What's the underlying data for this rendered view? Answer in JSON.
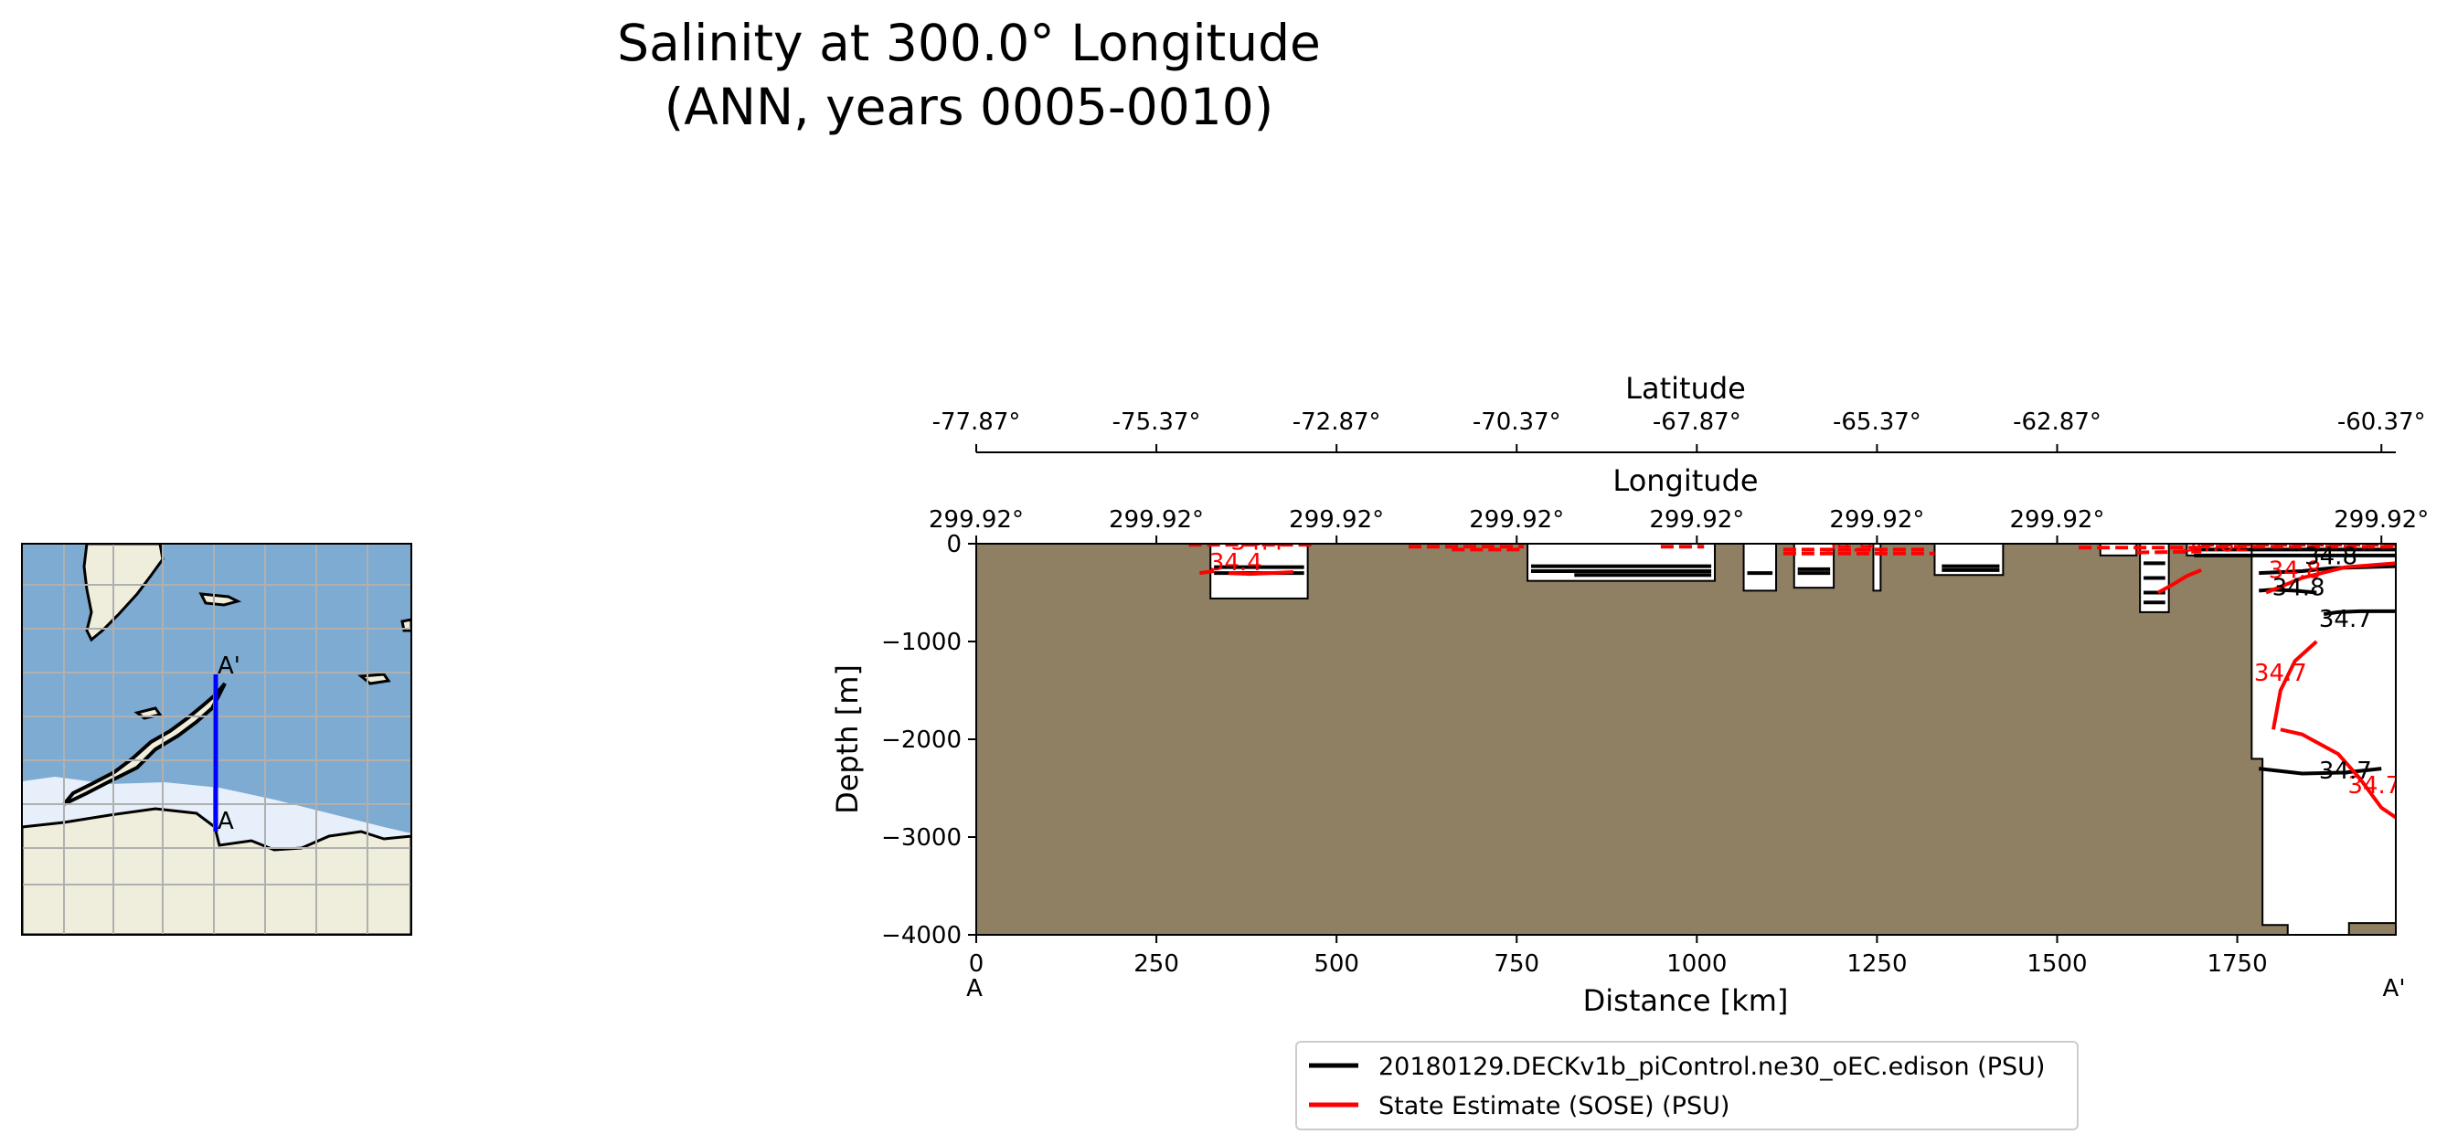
{
  "figure_title": {
    "line1": "Salinity at 300.0° Longitude",
    "line2": "(ANN, years 0005-0010)"
  },
  "colors": {
    "land": "#8f7f63",
    "model_line": "#000000",
    "obs_line": "#ff0000",
    "ocean_map": "#7eabd2",
    "ice_map": "#e6effa",
    "land_map": "#efeddb",
    "transect": "#0000ff"
  },
  "map": {
    "label_start": "A",
    "label_end": "A'",
    "grid": true
  },
  "chart_data": {
    "type": "contour-section",
    "xlabel": "Distance [km]",
    "ylabel": "Depth [m]",
    "xlim": [
      0,
      1970
    ],
    "ylim": [
      -4000,
      0
    ],
    "x_ticks": [
      "0",
      "250",
      "500",
      "750",
      "1000",
      "1250",
      "1500",
      "1750"
    ],
    "x_tick_values": [
      0,
      250,
      500,
      750,
      1000,
      1250,
      1500,
      1750
    ],
    "y_ticks": [
      "0",
      "−1000",
      "−2000",
      "−3000",
      "−4000"
    ],
    "y_tick_values": [
      0,
      -1000,
      -2000,
      -3000,
      -4000
    ],
    "x_end_labels": {
      "start": "A",
      "end": "A'"
    },
    "longitude_axis": {
      "label": "Longitude",
      "ticks": [
        "299.92°",
        "299.92°",
        "299.92°",
        "299.92°",
        "299.92°",
        "299.92°",
        "299.92°",
        "299.92°"
      ]
    },
    "latitude_axis": {
      "label": "Latitude",
      "ticks": [
        "-77.87°",
        "-75.37°",
        "-72.87°",
        "-70.37°",
        "-67.87°",
        "-65.37°",
        "-62.87°",
        "-60.37°"
      ]
    },
    "ocean_pockets": [
      {
        "x0": 325,
        "x1": 460,
        "bottom": -560
      },
      {
        "x0": 765,
        "x1": 1025,
        "bottom": -380
      },
      {
        "x0": 1065,
        "x1": 1110,
        "bottom": -480
      },
      {
        "x0": 1135,
        "x1": 1190,
        "bottom": -450
      },
      {
        "x0": 1245,
        "x1": 1255,
        "bottom": -480
      },
      {
        "x0": 1330,
        "x1": 1425,
        "bottom": -320
      },
      {
        "x0": 1560,
        "x1": 1610,
        "bottom": -120
      },
      {
        "x0": 1615,
        "x1": 1655,
        "bottom": -700
      },
      {
        "x0": 1680,
        "x1": 1970,
        "bottom": -120
      }
    ],
    "deep_basin": {
      "x": [
        1770,
        1770,
        1785,
        1785,
        1820,
        1820,
        1905,
        1905,
        1970
      ],
      "depth": [
        0,
        -2200,
        -2200,
        -3900,
        -3900,
        -4000,
        -4000,
        -3880,
        -3880
      ]
    },
    "contour_labels": [
      {
        "text": "34.4",
        "x": 360,
        "depth": -270,
        "series": "obs"
      },
      {
        "text": "34.4",
        "x": 390,
        "depth": -60,
        "series": "obs"
      },
      {
        "text": "34.4",
        "x": 1210,
        "depth": -80,
        "series": "obs"
      },
      {
        "text": "34.82",
        "x": 1720,
        "depth": -80,
        "series": "obs"
      },
      {
        "text": "34.8",
        "x": 1830,
        "depth": -350,
        "series": "obs"
      },
      {
        "text": "34.7",
        "x": 1810,
        "depth": -1400,
        "series": "obs"
      },
      {
        "text": "34.7",
        "x": 1940,
        "depth": -2550,
        "series": "obs"
      },
      {
        "text": "34.8",
        "x": 1835,
        "depth": -530,
        "series": "model"
      },
      {
        "text": "34.7",
        "x": 1900,
        "depth": -850,
        "series": "model"
      },
      {
        "text": "34.7",
        "x": 1900,
        "depth": -2400,
        "series": "model"
      },
      {
        "text": "34.8",
        "x": 1880,
        "depth": -210,
        "series": "model"
      }
    ],
    "series": [
      {
        "name": "20180129.DECKv1b_piControl.ne30_oEC.edison (PSU)",
        "color": "#000000"
      },
      {
        "name": "State Estimate (SOSE) (PSU)",
        "color": "#ff0000"
      }
    ],
    "legend_position": "bottom-center"
  }
}
